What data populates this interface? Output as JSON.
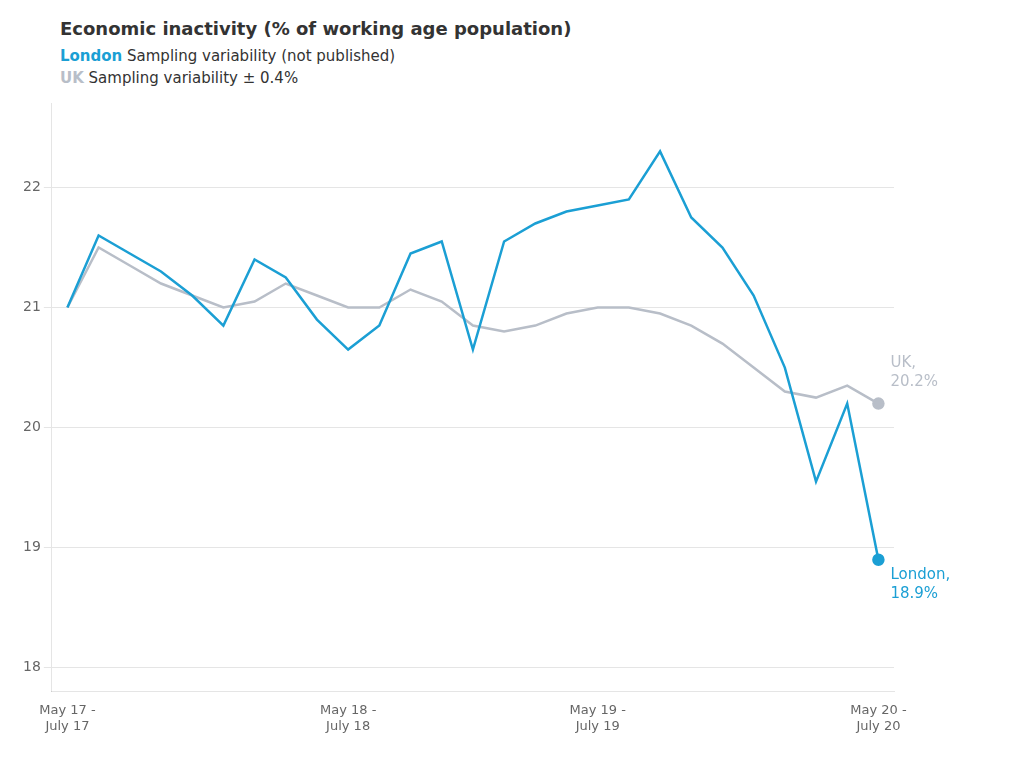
{
  "chart_data": {
    "type": "line",
    "title": "Economic inactivity (% of working age population)",
    "subtitle": [
      "London Sampling variability (not published)",
      "UK Sampling variability ± 0.4%"
    ],
    "categories": [
      "May 17 -\nJuly 17",
      null,
      null,
      null,
      null,
      null,
      null,
      null,
      null,
      "May 18 -\nJuly 18",
      null,
      null,
      null,
      null,
      null,
      null,
      null,
      "May 19 -\nJuly 19",
      null,
      null,
      null,
      null,
      null,
      null,
      null,
      null,
      "May 20 -\nJuly 20"
    ],
    "series": [
      {
        "name": "UK",
        "color": "#b8bec8",
        "values": [
          21.0,
          21.5,
          21.35,
          21.2,
          21.1,
          21.0,
          21.05,
          21.2,
          21.1,
          21.0,
          21.0,
          21.15,
          21.05,
          20.85,
          20.8,
          20.85,
          20.95,
          21.0,
          21.0,
          20.95,
          20.85,
          20.7,
          20.5,
          20.3,
          20.25,
          20.35,
          20.2
        ]
      },
      {
        "name": "London",
        "color": "#1b9fd4",
        "values": [
          21.0,
          21.6,
          21.45,
          21.3,
          21.1,
          20.85,
          21.4,
          21.25,
          20.9,
          20.65,
          20.85,
          21.45,
          21.55,
          20.65,
          21.55,
          21.7,
          21.8,
          21.85,
          21.9,
          22.3,
          21.75,
          21.5,
          21.1,
          20.5,
          19.55,
          20.2,
          18.9
        ]
      }
    ],
    "ylim": [
      17.8,
      22.7
    ],
    "yticks": [
      18,
      19,
      20,
      21,
      22
    ],
    "grid": true,
    "annotations": [
      {
        "series": "UK",
        "text": "UK,\n20.2%"
      },
      {
        "series": "London",
        "text": "London,\n18.9%"
      }
    ]
  }
}
